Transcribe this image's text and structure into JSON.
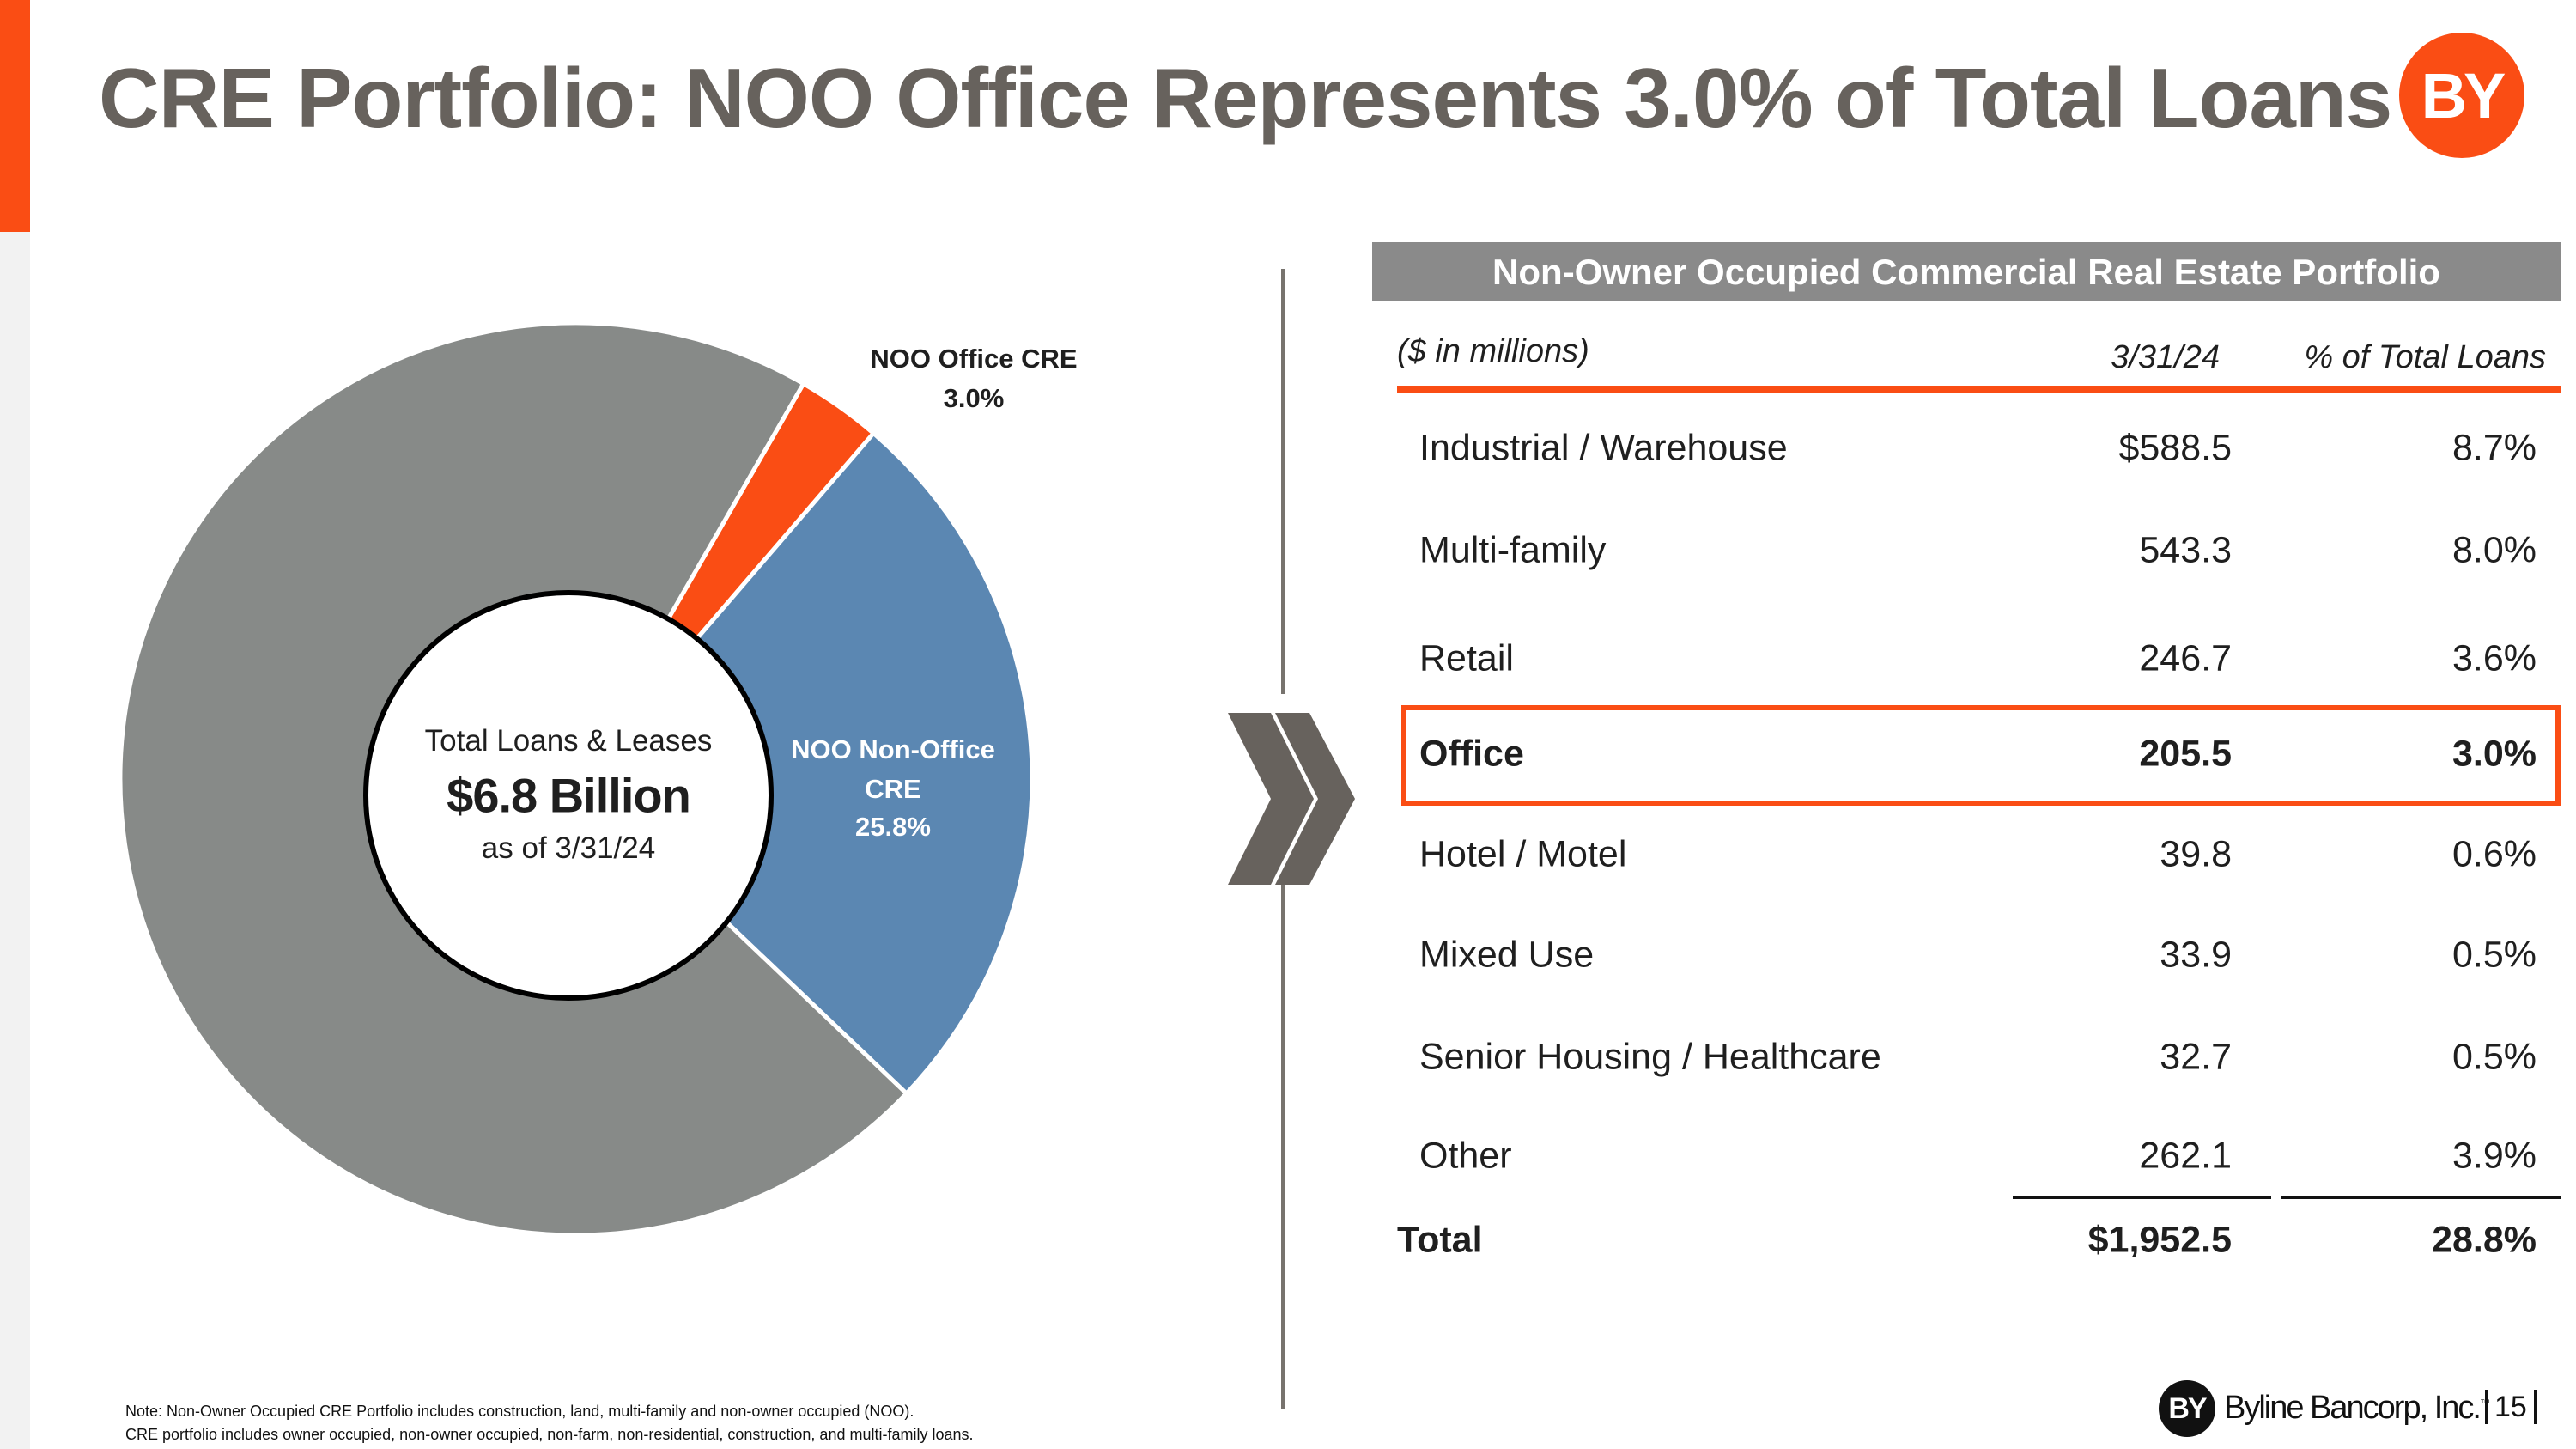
{
  "title": "CRE Portfolio: NOO Office Represents 3.0% of Total Loans",
  "logo_text": "BY",
  "colors": {
    "accent": "#fa4d14",
    "gray_slice": "#878a88",
    "blue_slice": "#5b87b2",
    "title": "#67625d"
  },
  "chart_data": {
    "type": "pie",
    "style": "donut",
    "slices": [
      {
        "label": "NOO Office CRE",
        "value": 3.0,
        "color": "#fa4d14"
      },
      {
        "label": "NOO Non-Office CRE",
        "value": 25.8,
        "color": "#5b87b2"
      },
      {
        "label": "",
        "value": 71.2,
        "color": "#878a88"
      }
    ],
    "labels": {
      "office_line1": "NOO Office CRE",
      "office_line2": "3.0%",
      "nonoffice_line1": "NOO Non-Office",
      "nonoffice_line2": "CRE",
      "nonoffice_line3": "25.8%"
    },
    "center": {
      "line1": "Total Loans & Leases",
      "line2": "$6.8 Billion",
      "line3": "as of 3/31/24"
    }
  },
  "table": {
    "title": "Non-Owner Occupied Commercial Real Estate Portfolio",
    "units": "($ in millions)",
    "col_date": "3/31/24",
    "col_pct": "% of Total Loans",
    "rows": [
      {
        "label": "Industrial / Warehouse",
        "value": "$588.5",
        "pct": "8.7%"
      },
      {
        "label": "Multi-family",
        "value": "543.3",
        "pct": "8.0%"
      },
      {
        "label": "Retail",
        "value": "246.7",
        "pct": "3.6%"
      },
      {
        "label": "Office",
        "value": "205.5",
        "pct": "3.0%",
        "highlighted": true
      },
      {
        "label": "Hotel / Motel",
        "value": "39.8",
        "pct": "0.6%"
      },
      {
        "label": "Mixed Use",
        "value": "33.9",
        "pct": "0.5%"
      },
      {
        "label": "Senior Housing / Healthcare",
        "value": "32.7",
        "pct": "0.5%"
      },
      {
        "label": "Other",
        "value": "262.1",
        "pct": "3.9%"
      }
    ],
    "total": {
      "label": "Total",
      "value": "$1,952.5",
      "pct": "28.8%"
    }
  },
  "notes": [
    "Note: Non-Owner Occupied CRE Portfolio includes construction, land, multi-family and non-owner occupied (NOO).",
    "CRE portfolio includes owner occupied, non-owner occupied, non-farm, non-residential, construction, and multi-family loans."
  ],
  "footer": {
    "logo_text": "BY",
    "company": "Byline Bancorp, Inc.",
    "trademark": "™",
    "page": "15"
  }
}
